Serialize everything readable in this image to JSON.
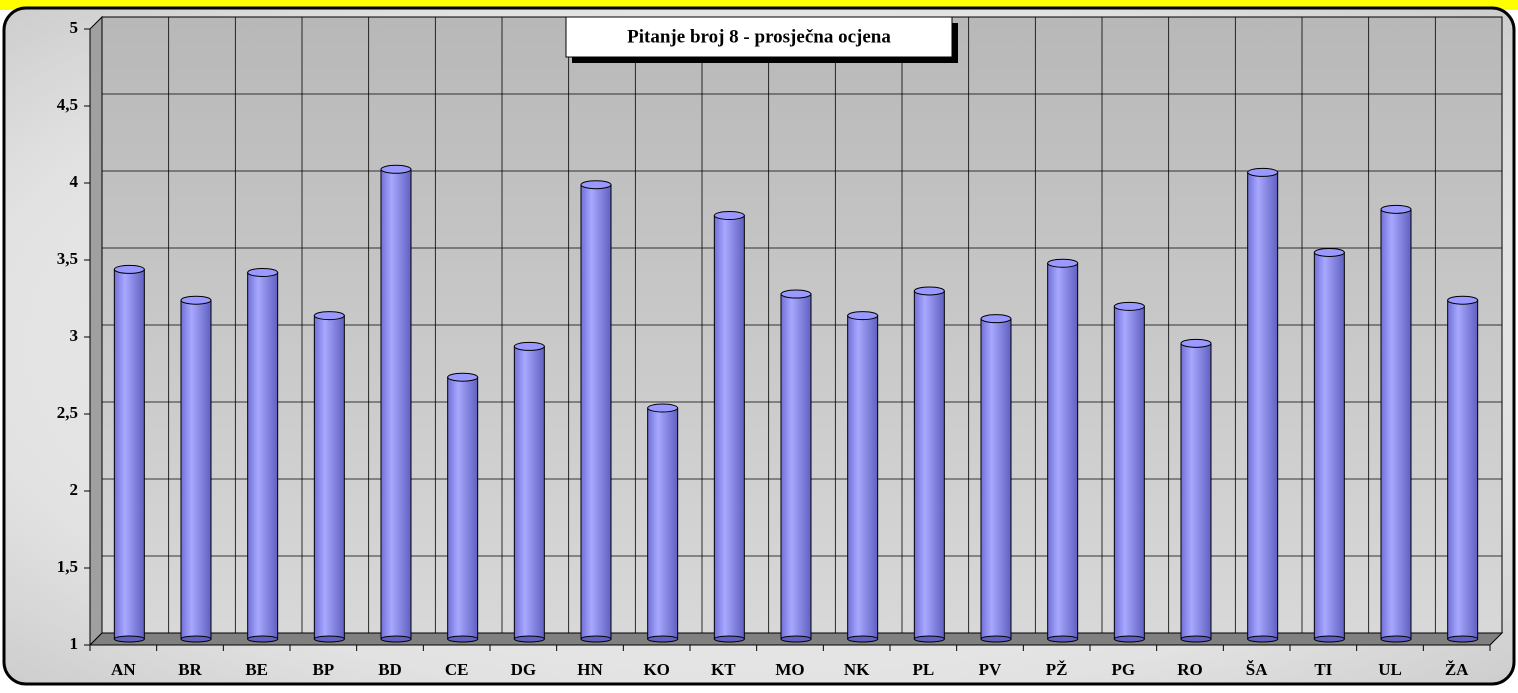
{
  "chart_data": {
    "type": "bar",
    "title": "Pitanje broj 8 - prosječna ocjena",
    "categories": [
      "AN",
      "BR",
      "BE",
      "BP",
      "BD",
      "CE",
      "DG",
      "HN",
      "KO",
      "KT",
      "MO",
      "NK",
      "PL",
      "PV",
      "PŽ",
      "PG",
      "RO",
      "ŠA",
      "TI",
      "UL",
      "ŽA"
    ],
    "values": [
      3.4,
      3.2,
      3.38,
      3.1,
      4.05,
      2.7,
      2.9,
      3.95,
      2.5,
      3.75,
      3.24,
      3.1,
      3.26,
      3.08,
      3.44,
      3.16,
      2.92,
      4.03,
      3.51,
      3.79,
      3.2
    ],
    "color": "#9999ff",
    "ylim": [
      1,
      5
    ],
    "yticks": [
      1,
      {
        "value": 1.5,
        "label": "1,5"
      },
      2,
      {
        "value": 2.5,
        "label": "2,5"
      },
      3,
      {
        "value": 3.5,
        "label": "3,5"
      },
      4,
      {
        "value": 4.5,
        "label": "4,5"
      },
      5
    ],
    "grid": true
  }
}
